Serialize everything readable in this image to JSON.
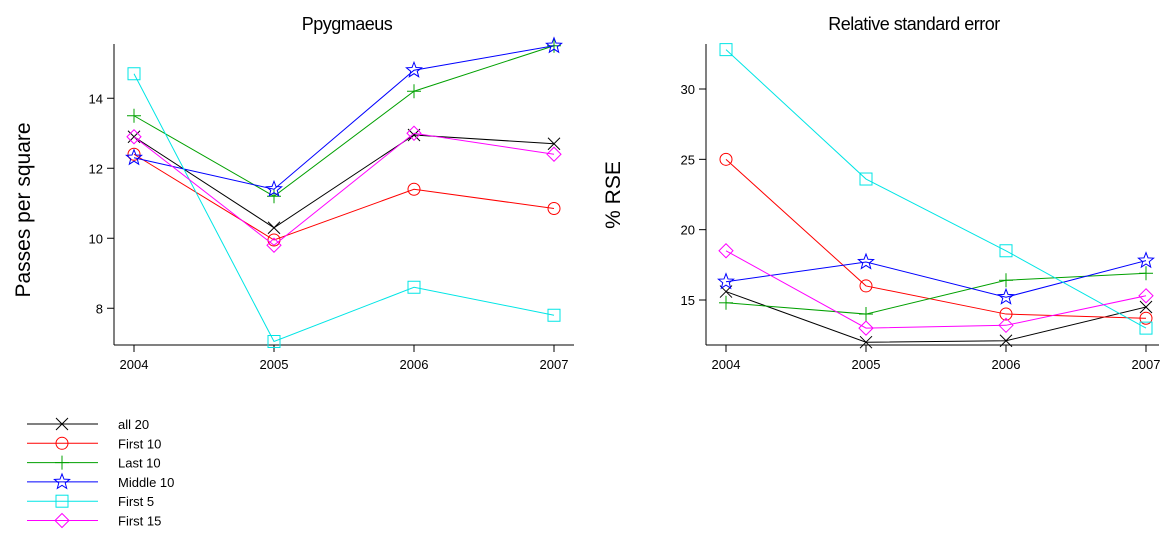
{
  "chart_data": [
    {
      "type": "line",
      "title": "Ppygmaeus",
      "xlabel": "",
      "ylabel": "Passes per square",
      "x": [
        2004,
        2005,
        2006,
        2007
      ],
      "xticks": [
        "2004",
        "2005",
        "2006",
        "2007"
      ],
      "yticks": [
        8,
        10,
        12,
        14
      ],
      "ylim": [
        6.95,
        15.55
      ],
      "grid": false,
      "series": [
        {
          "name": "all 20",
          "marker": "x",
          "color": "#000000",
          "values": [
            12.9,
            10.3,
            12.95,
            12.7
          ]
        },
        {
          "name": "First 10",
          "marker": "circle",
          "color": "#ff0000",
          "values": [
            12.4,
            9.95,
            11.4,
            10.85
          ]
        },
        {
          "name": "Last 10",
          "marker": "plus",
          "color": "#00a000",
          "values": [
            13.5,
            11.2,
            14.2,
            15.5
          ]
        },
        {
          "name": "Middle 10",
          "marker": "star",
          "color": "#0000ff",
          "values": [
            12.3,
            11.4,
            14.8,
            15.5
          ]
        },
        {
          "name": "First 5",
          "marker": "square",
          "color": "#00e5e5",
          "values": [
            14.7,
            7.05,
            8.6,
            7.8
          ]
        },
        {
          "name": "First 15",
          "marker": "diamond",
          "color": "#ff00ff",
          "values": [
            12.9,
            9.8,
            13.0,
            12.4
          ]
        }
      ]
    },
    {
      "type": "line",
      "title": "Relative standard error",
      "xlabel": "",
      "ylabel": "% RSE",
      "x": [
        2004,
        2005,
        2006,
        2007
      ],
      "xticks": [
        "2004",
        "2005",
        "2006",
        "2007"
      ],
      "yticks": [
        15,
        20,
        25,
        30
      ],
      "ylim": [
        11.8,
        33.2
      ],
      "grid": false,
      "series": [
        {
          "name": "all 20",
          "marker": "x",
          "color": "#000000",
          "values": [
            15.6,
            12.0,
            12.1,
            14.5
          ]
        },
        {
          "name": "First 10",
          "marker": "circle",
          "color": "#ff0000",
          "values": [
            25.0,
            16.0,
            14.0,
            13.7
          ]
        },
        {
          "name": "Last 10",
          "marker": "plus",
          "color": "#00a000",
          "values": [
            14.8,
            14.0,
            16.4,
            16.9
          ]
        },
        {
          "name": "Middle 10",
          "marker": "star",
          "color": "#0000ff",
          "values": [
            16.3,
            17.7,
            15.2,
            17.8
          ]
        },
        {
          "name": "First 5",
          "marker": "square",
          "color": "#00e5e5",
          "values": [
            32.8,
            23.6,
            18.5,
            13.0
          ]
        },
        {
          "name": "First 15",
          "marker": "diamond",
          "color": "#ff00ff",
          "values": [
            18.5,
            13.0,
            13.2,
            15.3
          ]
        }
      ]
    }
  ],
  "legend": {
    "placement": "bottom-left",
    "entries": [
      "all 20",
      "First 10",
      "Last 10",
      "Middle 10",
      "First 5",
      "First 15"
    ]
  }
}
